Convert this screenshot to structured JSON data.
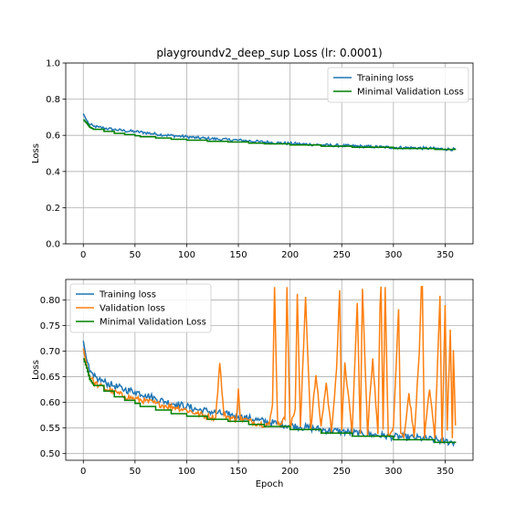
{
  "chart_data": [
    {
      "type": "line",
      "title": "playgroundv2_deep_sup Loss (lr: 0.0001)",
      "xlabel": "",
      "ylabel": "Loss",
      "xlim": [
        -17,
        377
      ],
      "ylim": [
        0.0,
        1.0
      ],
      "xticks": [
        0,
        50,
        100,
        150,
        200,
        250,
        300,
        350
      ],
      "yticks": [
        0.0,
        0.2,
        0.4,
        0.6,
        0.8,
        1.0
      ],
      "ytick_format": 1,
      "grid": true,
      "legend_position": "top-right",
      "series": [
        {
          "name": "Training loss",
          "color": "#1f77b4",
          "x": [
            0,
            3,
            6,
            10,
            15,
            20,
            30,
            40,
            50,
            60,
            70,
            80,
            90,
            100,
            110,
            120,
            130,
            140,
            150,
            160,
            170,
            180,
            190,
            200,
            210,
            220,
            230,
            240,
            250,
            260,
            270,
            280,
            290,
            300,
            310,
            320,
            330,
            340,
            350,
            360
          ],
          "y": [
            0.72,
            0.685,
            0.66,
            0.65,
            0.645,
            0.64,
            0.632,
            0.625,
            0.621,
            0.615,
            0.607,
            0.601,
            0.597,
            0.592,
            0.586,
            0.583,
            0.579,
            0.576,
            0.573,
            0.569,
            0.565,
            0.561,
            0.558,
            0.555,
            0.552,
            0.55,
            0.547,
            0.545,
            0.543,
            0.541,
            0.539,
            0.537,
            0.535,
            0.533,
            0.532,
            0.531,
            0.529,
            0.527,
            0.524,
            0.522
          ],
          "noise": 0.008
        },
        {
          "name": "Minimal Validation Loss",
          "color": "#008000",
          "x": [
            0,
            3,
            6,
            10,
            20,
            30,
            40,
            50,
            55,
            70,
            85,
            100,
            120,
            140,
            160,
            175,
            200,
            230,
            260,
            300,
            340,
            360
          ],
          "y": [
            0.685,
            0.667,
            0.645,
            0.633,
            0.622,
            0.611,
            0.604,
            0.598,
            0.592,
            0.585,
            0.578,
            0.573,
            0.567,
            0.563,
            0.557,
            0.553,
            0.547,
            0.54,
            0.534,
            0.527,
            0.522,
            0.521
          ],
          "step": true
        }
      ]
    },
    {
      "type": "line",
      "title": "",
      "xlabel": "Epoch",
      "ylabel": "Loss",
      "xlim": [
        -17,
        377
      ],
      "ylim": [
        0.487,
        0.84
      ],
      "xticks": [
        0,
        50,
        100,
        150,
        200,
        250,
        300,
        350
      ],
      "yticks": [
        0.5,
        0.55,
        0.6,
        0.65,
        0.7,
        0.75,
        0.8
      ],
      "ytick_format": 2,
      "grid": true,
      "legend_position": "top-left",
      "series": [
        {
          "name": "Training loss",
          "color": "#1f77b4",
          "x": [
            0,
            3,
            6,
            10,
            15,
            20,
            30,
            40,
            50,
            60,
            70,
            80,
            90,
            100,
            110,
            120,
            130,
            140,
            150,
            160,
            170,
            180,
            190,
            200,
            210,
            220,
            230,
            240,
            250,
            260,
            270,
            280,
            290,
            300,
            310,
            320,
            330,
            340,
            350,
            360
          ],
          "y": [
            0.72,
            0.685,
            0.66,
            0.65,
            0.645,
            0.64,
            0.632,
            0.625,
            0.621,
            0.615,
            0.607,
            0.601,
            0.597,
            0.592,
            0.586,
            0.583,
            0.579,
            0.576,
            0.573,
            0.569,
            0.565,
            0.561,
            0.558,
            0.555,
            0.552,
            0.55,
            0.547,
            0.545,
            0.543,
            0.541,
            0.539,
            0.537,
            0.535,
            0.533,
            0.532,
            0.531,
            0.529,
            0.527,
            0.524,
            0.522
          ],
          "noise": 0.007
        },
        {
          "name": "Validation loss",
          "color": "#ff7f0e",
          "x": [
            0,
            3,
            6,
            10,
            15,
            20,
            30,
            40,
            50,
            60,
            70,
            80,
            90,
            100,
            110,
            120,
            128,
            132,
            136,
            140,
            148,
            150,
            152,
            155,
            160,
            170,
            180,
            183,
            185,
            188,
            195,
            197,
            200,
            205,
            207,
            210,
            215,
            220,
            225,
            230,
            235,
            240,
            245,
            248,
            250,
            253,
            260,
            265,
            268,
            270,
            275,
            277,
            280,
            285,
            287,
            288,
            290,
            292,
            295,
            300,
            305,
            307,
            310,
            315,
            320,
            325,
            327,
            328,
            330,
            335,
            340,
            345,
            347,
            350,
            352,
            355,
            357,
            358,
            360
          ],
          "y": [
            0.705,
            0.675,
            0.652,
            0.64,
            0.633,
            0.628,
            0.62,
            0.612,
            0.607,
            0.603,
            0.598,
            0.593,
            0.59,
            0.585,
            0.578,
            0.573,
            0.57,
            0.677,
            0.575,
            0.572,
            0.566,
            0.627,
            0.565,
            0.568,
            0.564,
            0.558,
            0.557,
            0.595,
            0.825,
            0.556,
            0.567,
            0.825,
            0.55,
            0.588,
            0.812,
            0.552,
            0.806,
            0.548,
            0.653,
            0.553,
            0.638,
            0.542,
            0.666,
            0.819,
            0.545,
            0.678,
            0.54,
            0.794,
            0.538,
            0.822,
            0.536,
            0.608,
            0.686,
            0.538,
            0.788,
            0.826,
            0.547,
            0.825,
            0.536,
            0.553,
            0.782,
            0.54,
            0.532,
            0.618,
            0.532,
            0.696,
            0.826,
            0.826,
            0.53,
            0.625,
            0.53,
            0.808,
            0.52,
            0.79,
            0.545,
            0.742,
            0.53,
            0.702,
            0.555
          ],
          "noise": 0.006
        },
        {
          "name": "Minimal Validation Loss",
          "color": "#008000",
          "x": [
            0,
            3,
            6,
            10,
            20,
            30,
            40,
            50,
            55,
            70,
            85,
            100,
            120,
            140,
            160,
            175,
            200,
            230,
            260,
            300,
            340,
            360
          ],
          "y": [
            0.685,
            0.667,
            0.645,
            0.633,
            0.622,
            0.611,
            0.604,
            0.598,
            0.592,
            0.585,
            0.578,
            0.573,
            0.567,
            0.563,
            0.557,
            0.553,
            0.547,
            0.54,
            0.534,
            0.527,
            0.522,
            0.521
          ],
          "step": true
        }
      ]
    }
  ]
}
